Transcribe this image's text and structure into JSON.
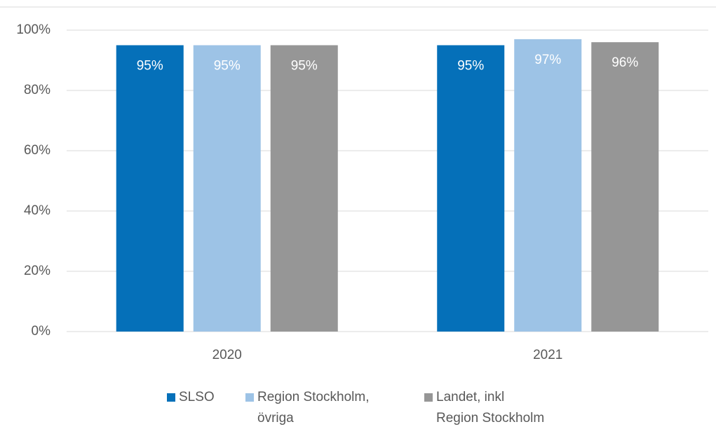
{
  "chart_data": {
    "type": "bar",
    "categories": [
      "2020",
      "2021"
    ],
    "series": [
      {
        "name": "SLSO",
        "color": "#0570b9",
        "values": [
          95,
          95
        ],
        "value_labels": [
          "95%",
          "95%"
        ]
      },
      {
        "name": "Region Stockholm, övriga",
        "color": "#9dc3e6",
        "values": [
          95,
          97
        ],
        "value_labels": [
          "95%",
          "97%"
        ]
      },
      {
        "name": "Landet, inkl Region Stockholm",
        "color": "#969696",
        "values": [
          95,
          96
        ],
        "value_labels": [
          "95%",
          "96%"
        ]
      }
    ],
    "ylim": [
      0,
      100
    ],
    "yticks": [
      {
        "value": 0,
        "label": "0%"
      },
      {
        "value": 20,
        "label": "20%"
      },
      {
        "value": 40,
        "label": "40%"
      },
      {
        "value": 60,
        "label": "60%"
      },
      {
        "value": 80,
        "label": "80%"
      },
      {
        "value": 100,
        "label": "100%"
      }
    ],
    "grid": true,
    "legend": "bottom"
  }
}
